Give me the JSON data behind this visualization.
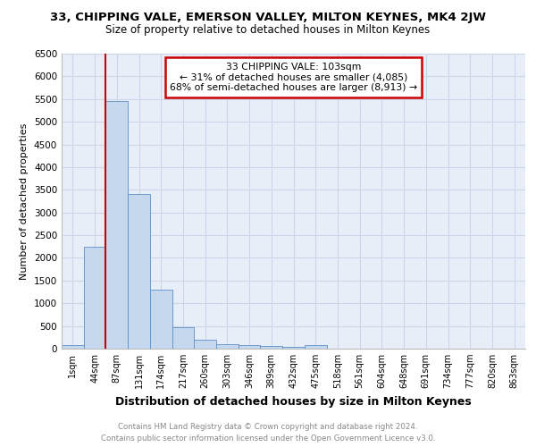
{
  "title": "33, CHIPPING VALE, EMERSON VALLEY, MILTON KEYNES, MK4 2JW",
  "subtitle": "Size of property relative to detached houses in Milton Keynes",
  "xlabel": "Distribution of detached houses by size in Milton Keynes",
  "ylabel": "Number of detached properties",
  "footnote1": "Contains HM Land Registry data © Crown copyright and database right 2024.",
  "footnote2": "Contains public sector information licensed under the Open Government Licence v3.0.",
  "bin_labels": [
    "1sqm",
    "44sqm",
    "87sqm",
    "131sqm",
    "174sqm",
    "217sqm",
    "260sqm",
    "303sqm",
    "346sqm",
    "389sqm",
    "432sqm",
    "475sqm",
    "518sqm",
    "561sqm",
    "604sqm",
    "648sqm",
    "691sqm",
    "734sqm",
    "777sqm",
    "820sqm",
    "863sqm"
  ],
  "bar_values": [
    75,
    2250,
    5450,
    3400,
    1300,
    480,
    190,
    100,
    75,
    50,
    40,
    75,
    0,
    0,
    0,
    0,
    0,
    0,
    0,
    0,
    0
  ],
  "bar_color": "#c5d8ed",
  "bar_edge_color": "#5b8fc9",
  "grid_color": "#ccd6e8",
  "background_color": "#e8eef8",
  "red_line_x": 1.5,
  "annotation_text": "33 CHIPPING VALE: 103sqm\n← 31% of detached houses are smaller (4,085)\n68% of semi-detached houses are larger (8,913) →",
  "annotation_box_color": "#ffffff",
  "annotation_edge_color": "#cc0000",
  "red_line_color": "#cc0000",
  "ylim": [
    0,
    6500
  ],
  "yticks": [
    0,
    500,
    1000,
    1500,
    2000,
    2500,
    3000,
    3500,
    4000,
    4500,
    5000,
    5500,
    6000,
    6500
  ]
}
